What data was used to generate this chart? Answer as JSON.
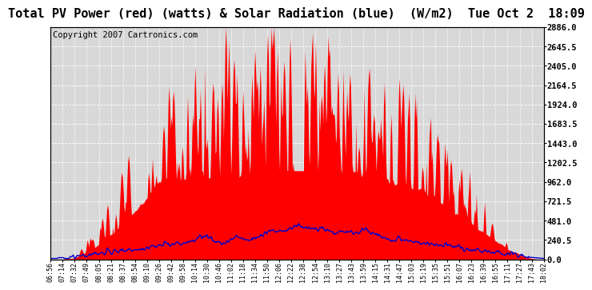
{
  "title": "Total PV Power (red) (watts) & Solar Radiation (blue)  (W/m2)  Tue Oct 2  18:09",
  "copyright": "Copyright 2007 Cartronics.com",
  "ylabel_right_ticks": [
    0.0,
    240.5,
    481.0,
    721.5,
    962.0,
    1202.5,
    1443.0,
    1683.5,
    1924.0,
    2164.5,
    2405.0,
    2645.5,
    2886.0
  ],
  "ymax": 2886.0,
  "ymin": 0.0,
  "background_color": "#ffffff",
  "plot_bg_color": "#d8d8d8",
  "grid_color": "#ffffff",
  "red_color": "#ff0000",
  "blue_color": "#0000cc",
  "title_fontsize": 11,
  "copyright_fontsize": 7.5,
  "x_tick_labels": [
    "06:56",
    "07:14",
    "07:32",
    "07:49",
    "08:05",
    "08:21",
    "08:37",
    "08:54",
    "09:10",
    "09:26",
    "09:42",
    "09:58",
    "10:14",
    "10:30",
    "10:46",
    "11:02",
    "11:18",
    "11:34",
    "11:50",
    "12:06",
    "12:22",
    "12:38",
    "12:54",
    "13:10",
    "13:27",
    "13:43",
    "13:59",
    "14:15",
    "14:31",
    "14:47",
    "15:03",
    "15:19",
    "15:35",
    "15:51",
    "16:07",
    "16:23",
    "16:39",
    "16:55",
    "17:11",
    "17:27",
    "17:43",
    "18:02"
  ]
}
